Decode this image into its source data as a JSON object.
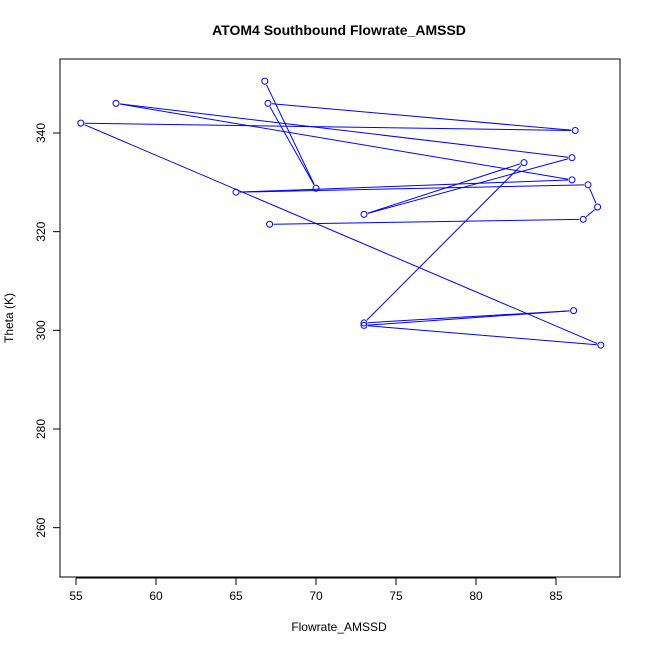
{
  "chart_data": {
    "type": "scatter",
    "title": "ATOM4 Southbound Flowrate_AMSSD",
    "xlabel": "Flowrate_AMSSD",
    "ylabel": "Theta (K)",
    "xlim": [
      54,
      89
    ],
    "ylim": [
      250,
      355
    ],
    "xticks": [
      55,
      60,
      65,
      70,
      75,
      80,
      85
    ],
    "yticks": [
      260,
      280,
      300,
      320,
      340
    ],
    "grid": false,
    "color": "#0000ff",
    "series": [
      {
        "x": [
          67.1,
          86.7,
          87.6,
          87.0,
          65.0,
          86.0,
          57.5,
          86.0,
          73.0,
          83.0,
          73.0,
          86.1,
          73.0,
          87.8,
          55.3,
          86.2,
          67.0,
          70.0,
          66.8
        ],
        "y": [
          321.5,
          322.5,
          325.0,
          329.5,
          328.0,
          330.5,
          346.0,
          335.0,
          323.5,
          334.0,
          301.5,
          304.0,
          301.0,
          297.0,
          342.0,
          340.5,
          346.0,
          328.8,
          350.5
        ]
      }
    ]
  }
}
